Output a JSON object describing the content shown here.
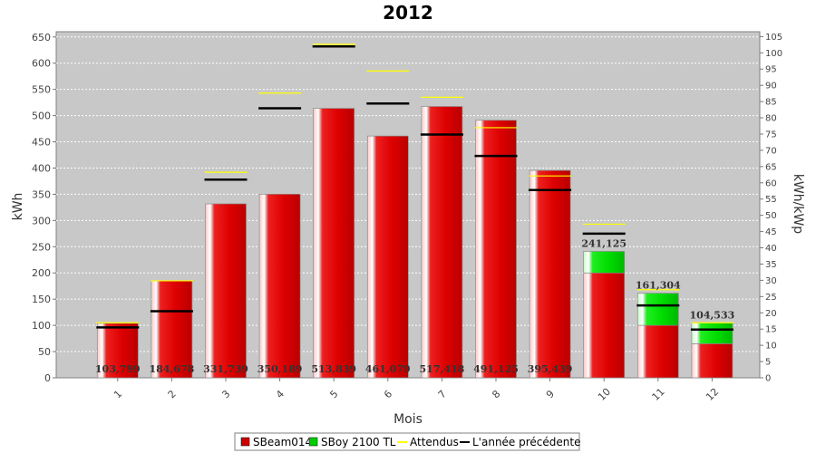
{
  "chart_data": {
    "type": "bar",
    "title": "2012",
    "xlabel": "Mois",
    "ylabel": "kWh",
    "ylabel_right": "kWh/kWp",
    "ylim": [
      0,
      660
    ],
    "ylim_right": [
      0,
      106.5
    ],
    "y_ticks": [
      0,
      50,
      100,
      150,
      200,
      250,
      300,
      350,
      400,
      450,
      500,
      550,
      600,
      650
    ],
    "y_right_ticks": [
      0,
      5,
      10,
      15,
      20,
      25,
      30,
      35,
      40,
      45,
      50,
      55,
      60,
      65,
      70,
      75,
      80,
      85,
      90,
      95,
      100,
      105
    ],
    "grid": true,
    "legend_position": "bottom",
    "categories": [
      "1",
      "2",
      "3",
      "4",
      "5",
      "6",
      "7",
      "8",
      "9",
      "10",
      "11",
      "12"
    ],
    "series": [
      {
        "name": "SBeam014",
        "kind": "bar",
        "color": "#dd0000",
        "values": [
          103.799,
          184.678,
          331.739,
          350.189,
          513.839,
          461.079,
          517.418,
          491.125,
          395.439,
          200,
          100,
          65
        ]
      },
      {
        "name": "SBoy 2100 TL",
        "kind": "bar",
        "color": "#00dd00",
        "values": [
          0,
          0,
          0,
          0,
          0,
          0,
          0,
          0,
          0,
          41.125,
          61.304,
          39.533
        ]
      },
      {
        "name": "Attendus",
        "kind": "line",
        "color": "#ffff00",
        "values": [
          105,
          185,
          392,
          543,
          636,
          585,
          535,
          477,
          385,
          293,
          168,
          105
        ]
      },
      {
        "name": "L'année précédente",
        "kind": "line",
        "color": "#000000",
        "values": [
          96,
          127,
          378,
          514,
          632,
          523,
          464,
          423,
          358,
          275,
          138,
          92
        ]
      }
    ],
    "data_labels": [
      "103,799",
      "184,678",
      "331,739",
      "350,189",
      "513,839",
      "461,079",
      "517,418",
      "491,125",
      "395,439",
      "241,125",
      "161,304",
      "104,533"
    ]
  }
}
